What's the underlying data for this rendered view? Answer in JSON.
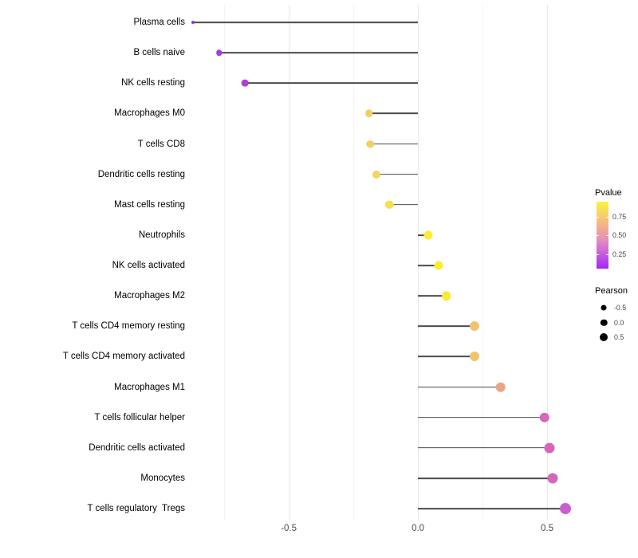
{
  "chart_data": {
    "type": "scatter",
    "variant": "lollipop",
    "title": "",
    "xlabel": "",
    "ylabel": "",
    "xlim": [
      -0.945,
      0.645
    ],
    "grid": "vertical-only",
    "legend_position": "right",
    "x_axis": {
      "ticks": [
        {
          "value": -0.5,
          "label": "-0.5"
        },
        {
          "value": 0.0,
          "label": "0.0"
        },
        {
          "value": 0.5,
          "label": "0.5"
        }
      ],
      "minor_gridlines": [
        -0.75,
        -0.25,
        0.25
      ],
      "major_gridlines": [
        -0.5,
        0.0,
        0.5
      ]
    },
    "rows": [
      {
        "label": "Plasma cells",
        "pearson": -0.87,
        "dot_color": "#9B32E6",
        "dot_size": 4
      },
      {
        "label": "B cells naive",
        "pearson": -0.77,
        "dot_color": "#A63BE2",
        "dot_size": 7.5
      },
      {
        "label": "NK cells resting",
        "pearson": -0.67,
        "dot_color": "#AF3FD9",
        "dot_size": 8.7
      },
      {
        "label": "Macrophages M0",
        "pearson": -0.19,
        "dot_color": "#F2CE66",
        "dot_size": 9.5
      },
      {
        "label": "T cells CD8",
        "pearson": -0.185,
        "dot_color": "#F2CE66",
        "dot_size": 9.5
      },
      {
        "label": "Dendritic cells resting",
        "pearson": -0.16,
        "dot_color": "#F4D35F",
        "dot_size": 10
      },
      {
        "label": "Mast cells resting",
        "pearson": -0.11,
        "dot_color": "#F7DF4D",
        "dot_size": 10.5
      },
      {
        "label": "Neutrophils",
        "pearson": 0.04,
        "dot_color": "#FAEE33",
        "dot_size": 11
      },
      {
        "label": "NK cells activated",
        "pearson": 0.08,
        "dot_color": "#FAED36",
        "dot_size": 11
      },
      {
        "label": "Macrophages M2",
        "pearson": 0.11,
        "dot_color": "#F9E93C",
        "dot_size": 11.5
      },
      {
        "label": "T cells CD4 memory resting",
        "pearson": 0.22,
        "dot_color": "#F0C46E",
        "dot_size": 12
      },
      {
        "label": "T cells CD4 memory activated",
        "pearson": 0.22,
        "dot_color": "#F0C46E",
        "dot_size": 12
      },
      {
        "label": "Macrophages M1",
        "pearson": 0.32,
        "dot_color": "#E9A687",
        "dot_size": 12.5
      },
      {
        "label": "T cells follicular helper",
        "pearson": 0.49,
        "dot_color": "#D969B4",
        "dot_size": 12.5
      },
      {
        "label": "Dendritic cells activated",
        "pearson": 0.51,
        "dot_color": "#D666BD",
        "dot_size": 13
      },
      {
        "label": "Monocytes",
        "pearson": 0.52,
        "dot_color": "#D566BB",
        "dot_size": 13
      },
      {
        "label": "T cells regulatory  Tregs",
        "pearson": 0.57,
        "dot_color": "#CA5ED1",
        "dot_size": 14
      }
    ],
    "legend_pvalue": {
      "title": "Pvalue",
      "gradient_stops": [
        {
          "color": "#FCF43C",
          "pos": 0
        },
        {
          "color": "#F6CF6D",
          "pos": 20
        },
        {
          "color": "#EFAB90",
          "pos": 40
        },
        {
          "color": "#E592B8",
          "pos": 55
        },
        {
          "color": "#D06BD6",
          "pos": 72
        },
        {
          "color": "#A228F2",
          "pos": 100
        }
      ],
      "value_top": 0.95,
      "value_bottom": 0.06,
      "ticks": [
        {
          "value": 0.75,
          "label": "0.75"
        },
        {
          "value": 0.5,
          "label": "0.50"
        },
        {
          "value": 0.25,
          "label": "0.25"
        }
      ]
    },
    "legend_pearson": {
      "title": "Pearson",
      "items": [
        {
          "label": "-0.5",
          "size": 7
        },
        {
          "label": "0.0",
          "size": 8.5
        },
        {
          "label": "0.5",
          "size": 10
        }
      ]
    },
    "stem_color": "#4a4a4a"
  }
}
